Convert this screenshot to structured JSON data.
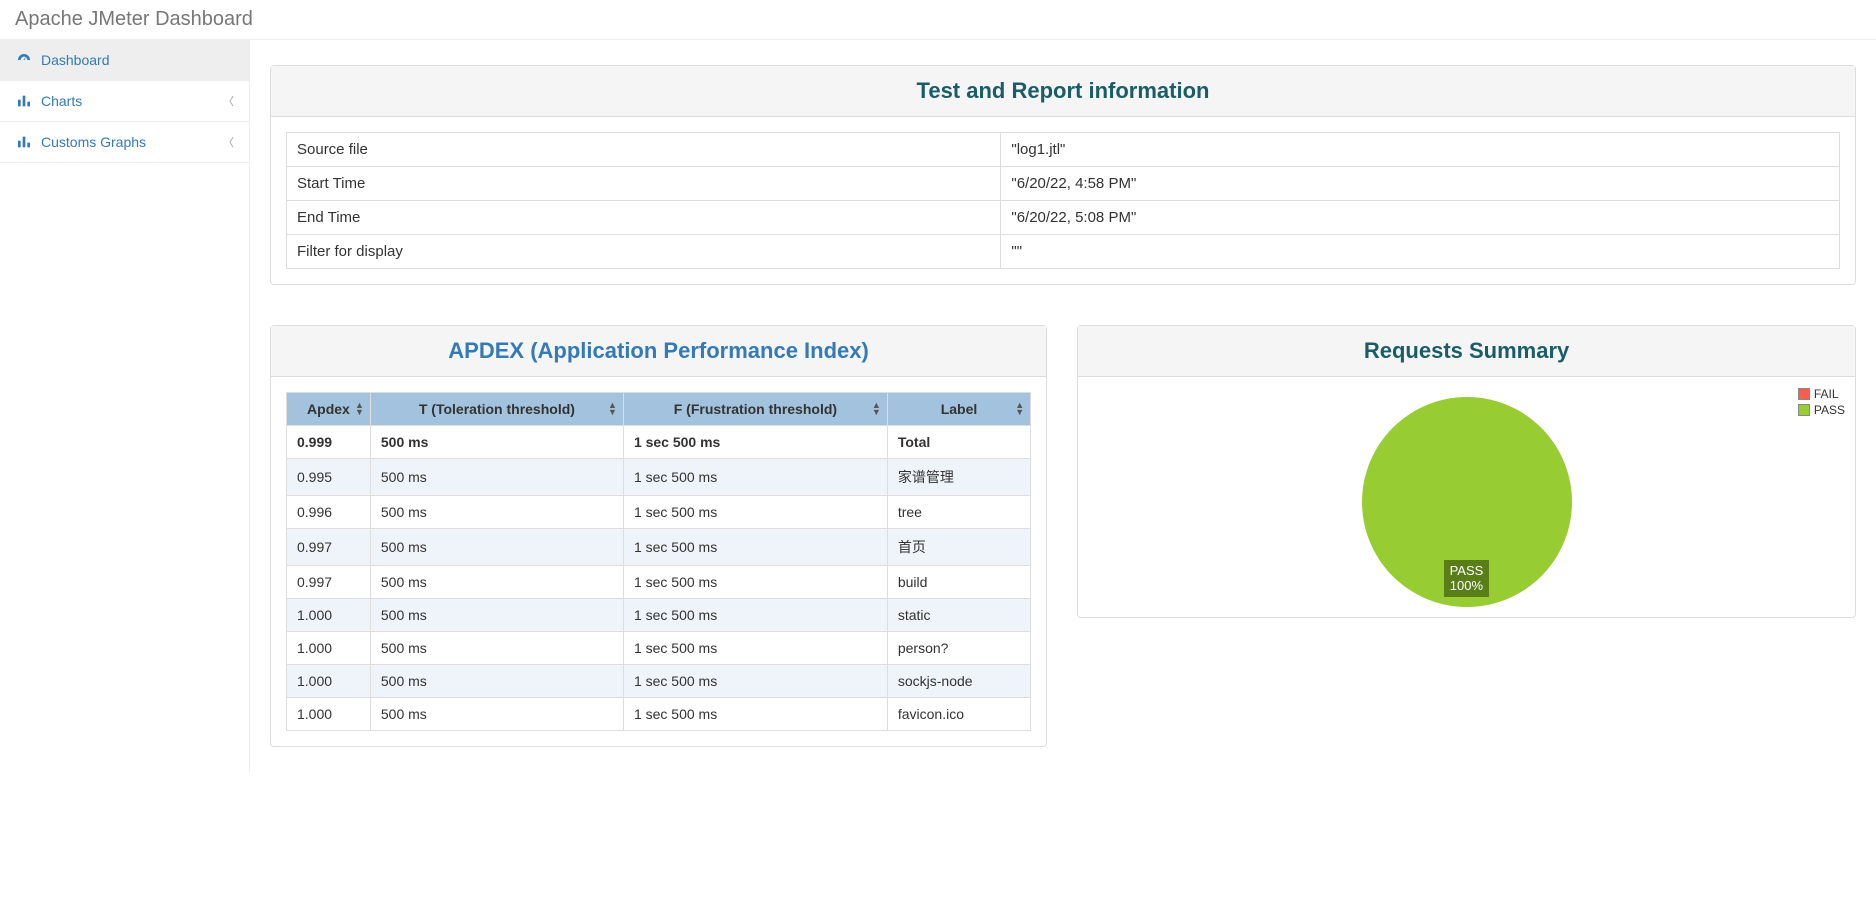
{
  "header": {
    "title": "Apache JMeter Dashboard"
  },
  "sidebar": {
    "items": [
      {
        "label": "Dashboard",
        "icon": "dashboard",
        "active": true,
        "expandable": false
      },
      {
        "label": "Charts",
        "icon": "bar-chart",
        "active": false,
        "expandable": true
      },
      {
        "label": "Customs Graphs",
        "icon": "bar-chart",
        "active": false,
        "expandable": true
      }
    ]
  },
  "report_info": {
    "title": "Test and Report information",
    "rows": [
      {
        "k": "Source file",
        "v": "\"log1.jtl\""
      },
      {
        "k": "Start Time",
        "v": "\"6/20/22, 4:58 PM\""
      },
      {
        "k": "End Time",
        "v": "\"6/20/22, 5:08 PM\""
      },
      {
        "k": "Filter for display",
        "v": "\"\""
      }
    ]
  },
  "apdex": {
    "title": "APDEX (Application Performance Index)",
    "columns": [
      "Apdex",
      "T (Toleration threshold)",
      "F (Frustration threshold)",
      "Label"
    ],
    "total_row": {
      "apdex": "0.999",
      "t": "500 ms",
      "f": "1 sec 500 ms",
      "label": "Total"
    },
    "rows": [
      {
        "apdex": "0.995",
        "t": "500 ms",
        "f": "1 sec 500 ms",
        "label": "家谱管理"
      },
      {
        "apdex": "0.996",
        "t": "500 ms",
        "f": "1 sec 500 ms",
        "label": "tree"
      },
      {
        "apdex": "0.997",
        "t": "500 ms",
        "f": "1 sec 500 ms",
        "label": "首页"
      },
      {
        "apdex": "0.997",
        "t": "500 ms",
        "f": "1 sec 500 ms",
        "label": "build"
      },
      {
        "apdex": "1.000",
        "t": "500 ms",
        "f": "1 sec 500 ms",
        "label": "static"
      },
      {
        "apdex": "1.000",
        "t": "500 ms",
        "f": "1 sec 500 ms",
        "label": "person?"
      },
      {
        "apdex": "1.000",
        "t": "500 ms",
        "f": "1 sec 500 ms",
        "label": "sockjs-node"
      },
      {
        "apdex": "1.000",
        "t": "500 ms",
        "f": "1 sec 500 ms",
        "label": "favicon.ico"
      }
    ],
    "header_bg": "#a3c2de",
    "stripe_bg": "#eef4fa"
  },
  "requests_summary": {
    "title": "Requests Summary",
    "type": "pie",
    "slices": [
      {
        "name": "PASS",
        "value": 100,
        "color": "#97cc32"
      },
      {
        "name": "FAIL",
        "value": 0,
        "color": "#ff5b4f"
      }
    ],
    "legend": [
      {
        "label": "FAIL",
        "color": "#ff5b4f"
      },
      {
        "label": "PASS",
        "color": "#97cc32"
      }
    ],
    "center_label": {
      "line1": "PASS",
      "line2": "100%",
      "bg": "#5a7e17",
      "fg": "#ffffff"
    },
    "radius": 105
  }
}
